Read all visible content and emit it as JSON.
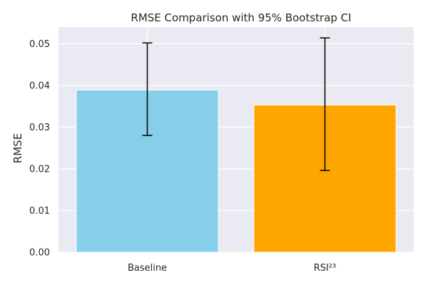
{
  "chart_data": {
    "type": "bar",
    "title": "RMSE Comparison with 95% Bootstrap CI",
    "xlabel": "",
    "ylabel": "RMSE",
    "ylim": [
      0,
      0.054
    ],
    "yticks": [
      "0.00",
      "0.01",
      "0.02",
      "0.03",
      "0.04",
      "0.05"
    ],
    "categories": [
      "Baseline",
      "RSI²³"
    ],
    "values": [
      0.0389,
      0.0353
    ],
    "ci_lower": [
      0.028,
      0.0196
    ],
    "ci_upper": [
      0.0502,
      0.0514
    ],
    "bar_colors": [
      "#87ceeb",
      "#ffa500"
    ],
    "grid": true,
    "background": "#eaeaf2",
    "legend": "none"
  }
}
